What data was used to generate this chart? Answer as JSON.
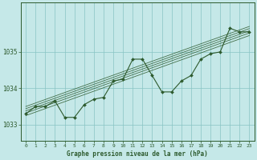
{
  "title": "Graphe pression niveau de la mer (hPa)",
  "background_color": "#c5e8e8",
  "grid_color": "#88c4c4",
  "line_color": "#2d5a2d",
  "xlim": [
    -0.5,
    23.5
  ],
  "ylim": [
    1032.55,
    1036.35
  ],
  "yticks": [
    1033,
    1034,
    1035
  ],
  "xticks": [
    0,
    1,
    2,
    3,
    4,
    5,
    6,
    7,
    8,
    9,
    10,
    11,
    12,
    13,
    14,
    15,
    16,
    17,
    18,
    19,
    20,
    21,
    22,
    23
  ],
  "x": [
    0,
    1,
    2,
    3,
    4,
    5,
    6,
    7,
    8,
    9,
    10,
    11,
    12,
    13,
    14,
    15,
    16,
    17,
    18,
    19,
    20,
    21,
    22,
    23
  ],
  "y": [
    1033.3,
    1033.5,
    1033.5,
    1033.65,
    1033.2,
    1033.2,
    1033.55,
    1033.7,
    1033.75,
    1034.2,
    1034.25,
    1034.8,
    1034.8,
    1034.35,
    1033.9,
    1033.9,
    1034.2,
    1034.35,
    1034.8,
    1034.95,
    1035.0,
    1035.65,
    1035.55,
    1035.55
  ],
  "trend_lines": [
    [
      1033.25,
      1035.45
    ],
    [
      1033.32,
      1035.52
    ],
    [
      1033.38,
      1035.58
    ],
    [
      1033.44,
      1035.64
    ],
    [
      1033.5,
      1035.7
    ]
  ]
}
